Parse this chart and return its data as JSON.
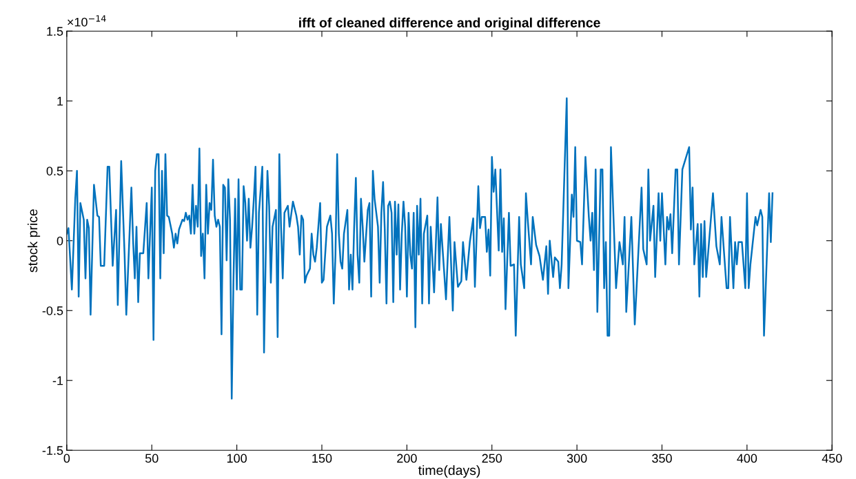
{
  "chart_data": {
    "type": "line",
    "title": "ifft of cleaned difference and original difference",
    "xlabel": "time(days)",
    "ylabel": "stock price",
    "annotations": [
      "×10$^{−14}$"
    ],
    "xlim": [
      0,
      450
    ],
    "xticks": [
      0,
      50,
      100,
      150,
      200,
      250,
      300,
      350,
      400,
      450
    ],
    "ylim": [
      -1.5,
      1.5
    ],
    "yticks": [
      {
        "value": -1.5,
        "label": "-1.5"
      },
      {
        "value": -1,
        "label": "-1"
      },
      {
        "value": -0.5,
        "label": "-0.5"
      },
      0,
      0.5,
      1,
      1.5
    ],
    "grid": false,
    "marker": "none",
    "line_style": "solid",
    "series": [
      {
        "color": "#0072bd",
        "x": [
          0,
          1,
          3,
          5,
          6,
          7,
          8,
          10,
          11,
          12,
          13,
          14,
          16,
          18,
          19,
          20,
          22,
          24,
          25,
          27,
          29,
          30,
          32,
          34,
          35,
          38,
          39,
          40,
          41,
          42,
          43,
          45,
          47,
          48,
          50,
          51,
          52,
          53,
          54,
          55,
          56,
          57,
          58,
          59,
          60,
          62,
          63,
          64,
          65,
          66,
          68,
          69,
          70,
          71,
          72,
          73,
          74,
          75,
          76,
          77,
          78,
          79,
          80,
          81,
          82,
          83,
          84,
          85,
          86,
          87,
          88,
          89,
          90,
          91,
          92,
          93,
          94,
          95,
          96,
          97,
          98,
          99,
          100,
          101,
          102,
          103,
          104,
          105,
          106,
          107,
          108,
          109,
          110,
          111,
          112,
          113,
          115,
          116,
          117,
          118,
          119,
          120,
          121,
          123,
          124,
          125,
          126,
          127,
          128,
          130,
          131,
          133,
          135,
          136,
          137,
          138,
          139,
          140,
          141,
          143,
          144,
          145,
          146,
          147,
          149,
          150,
          151,
          153,
          155,
          156,
          157,
          158,
          159,
          160,
          161,
          162,
          163,
          165,
          166,
          167,
          168,
          169,
          170,
          171,
          172,
          173,
          174,
          175,
          177,
          178,
          179,
          180,
          181,
          183,
          184,
          185,
          186,
          187,
          188,
          189,
          190,
          191,
          192,
          193,
          194,
          195,
          196,
          197,
          198,
          199,
          200,
          201,
          202,
          203,
          204,
          205,
          206,
          207,
          208,
          209,
          210,
          212,
          213,
          214,
          216,
          218,
          219,
          220,
          223,
          225,
          227,
          228,
          230,
          232,
          233,
          235,
          237,
          239,
          240,
          242,
          243,
          244,
          246,
          247,
          248,
          249,
          250,
          251,
          252,
          254,
          255,
          256,
          257,
          258,
          260,
          261,
          263,
          264,
          266,
          267,
          269,
          270,
          271,
          273,
          274,
          276,
          278,
          280,
          282,
          283,
          284,
          286,
          287,
          289,
          290,
          291,
          294,
          295,
          297,
          298,
          299,
          300,
          302,
          303,
          305,
          307,
          308,
          309,
          310,
          311,
          312,
          314,
          315,
          316,
          317,
          318,
          319,
          320,
          323,
          325,
          327,
          328,
          329,
          332,
          334,
          338,
          339,
          341,
          342,
          343,
          345,
          346,
          348,
          349,
          350,
          352,
          353,
          354,
          355,
          356,
          358,
          359,
          360,
          362,
          366,
          367,
          368,
          369,
          371,
          372,
          373,
          374,
          375,
          376,
          380,
          382,
          384,
          385,
          388,
          389,
          390,
          392,
          393,
          394,
          395,
          397,
          399,
          400,
          401,
          402,
          405,
          406,
          408,
          409,
          410,
          413,
          414,
          415
        ],
        "values": [
          0.05,
          0.09,
          -0.35,
          0.3,
          0.5,
          -0.4,
          0.27,
          0.15,
          -0.27,
          0.15,
          0.09,
          -0.53,
          0.4,
          0.18,
          0.17,
          -0.18,
          -0.18,
          0.53,
          0.53,
          -0.18,
          0.22,
          -0.46,
          0.57,
          -0.1,
          -0.53,
          0.38,
          0,
          -0.27,
          0.1,
          -0.44,
          -0.09,
          -0.09,
          0.27,
          -0.27,
          0.38,
          -0.71,
          0.5,
          0.62,
          0.62,
          -0.27,
          0.5,
          -0.09,
          0.62,
          0.18,
          0.17,
          0.05,
          -0.05,
          0.05,
          -0.02,
          0.08,
          0.15,
          0.14,
          0.2,
          0.15,
          0.18,
          0.05,
          0.4,
          0.05,
          0.25,
          0.1,
          0.66,
          -0.11,
          0.05,
          -0.27,
          0.4,
          0.05,
          0.27,
          0.22,
          0.58,
          0.18,
          0.1,
          0.15,
          0.1,
          -0.67,
          0.4,
          0.38,
          -0.14,
          0.44,
          0.15,
          -1.13,
          -0.3,
          0.3,
          -0.35,
          0.44,
          -0.35,
          -0.35,
          0.39,
          0.27,
          0,
          0.3,
          -0.05,
          0.1,
          0.3,
          0.53,
          -0.53,
          0.2,
          0.53,
          -0.8,
          -0.1,
          0.5,
          0.25,
          -0.3,
          0.1,
          0.22,
          -0.69,
          0.62,
          0.1,
          -0.27,
          0.2,
          0.25,
          0.1,
          0.28,
          0.18,
          0.1,
          -0.1,
          0.18,
          0.15,
          -0.3,
          -0.25,
          -0.2,
          0.05,
          -0.1,
          -0.15,
          -0.05,
          0.27,
          -0.3,
          -0.28,
          0.1,
          0.18,
          0.05,
          -0.45,
          -0.1,
          0.62,
          0.05,
          -0.15,
          -0.2,
          0.05,
          0.22,
          -0.35,
          -0.1,
          -0.35,
          0.1,
          0.45,
          -0.1,
          -0.3,
          0.3,
          0.1,
          -0.15,
          0.22,
          0.27,
          -0.4,
          0.5,
          0.3,
          0.1,
          -0.3,
          0.2,
          0.42,
          0.08,
          -0.45,
          0.25,
          0.28,
          0.2,
          -0.44,
          0.28,
          -0.1,
          0.26,
          -0.35,
          0.05,
          0.28,
          0.1,
          -0.4,
          0.2,
          -0.1,
          -0.2,
          0.2,
          -0.62,
          0.25,
          -0.1,
          0.3,
          -0.45,
          0.05,
          0.18,
          -0.45,
          0.1,
          -0.37,
          0.31,
          -0.21,
          0.12,
          -0.42,
          0.17,
          -0.5,
          -0.01,
          -0.33,
          -0.29,
          -0.01,
          -0.28,
          -0.01,
          0.16,
          -0.33,
          0.39,
          0.09,
          0.17,
          0.17,
          -0.08,
          0.08,
          -0.25,
          0.6,
          0.35,
          0.51,
          -0.07,
          0.51,
          -0.08,
          0.16,
          -0.49,
          0.2,
          -0.18,
          -0.17,
          -0.68,
          0.17,
          -0.17,
          -0.34,
          0.34,
          0.16,
          -0.17,
          0.17,
          -0.03,
          -0.11,
          -0.28,
          -0.04,
          -0.38,
          0,
          -0.26,
          -0.12,
          -0.15,
          -0.34,
          -0.17,
          1.02,
          -0.34,
          0.33,
          0.17,
          0.67,
          0,
          -0.01,
          -0.17,
          0.6,
          0.17,
          0,
          0.2,
          -0.21,
          0.51,
          -0.51,
          0.51,
          0.51,
          -0.34,
          -0.01,
          -0.68,
          -0.68,
          0.67,
          -0.34,
          -0.01,
          -0.17,
          0.17,
          -0.51,
          0.17,
          -0.6,
          0.38,
          -0.06,
          -0.17,
          0.51,
          0,
          0.25,
          -0.26,
          0.34,
          0,
          0.34,
          -0.17,
          0.17,
          0.08,
          0.19,
          -0.09,
          0.51,
          0.51,
          -0.17,
          0.51,
          0.67,
          0.08,
          0.38,
          -0.17,
          0.12,
          -0.4,
          0.12,
          -0.26,
          0.14,
          -0.26,
          0.34,
          -0.04,
          -0.17,
          0.17,
          -0.34,
          -0.34,
          0.17,
          -0.34,
          -0.01,
          -0.17,
          -0.01,
          -0.01,
          -0.34,
          0.34,
          -0.34,
          -0.17,
          0.17,
          0.11,
          0.22,
          0.17,
          -0.68,
          0.34,
          -0.01,
          0.34
        ]
      }
    ]
  }
}
